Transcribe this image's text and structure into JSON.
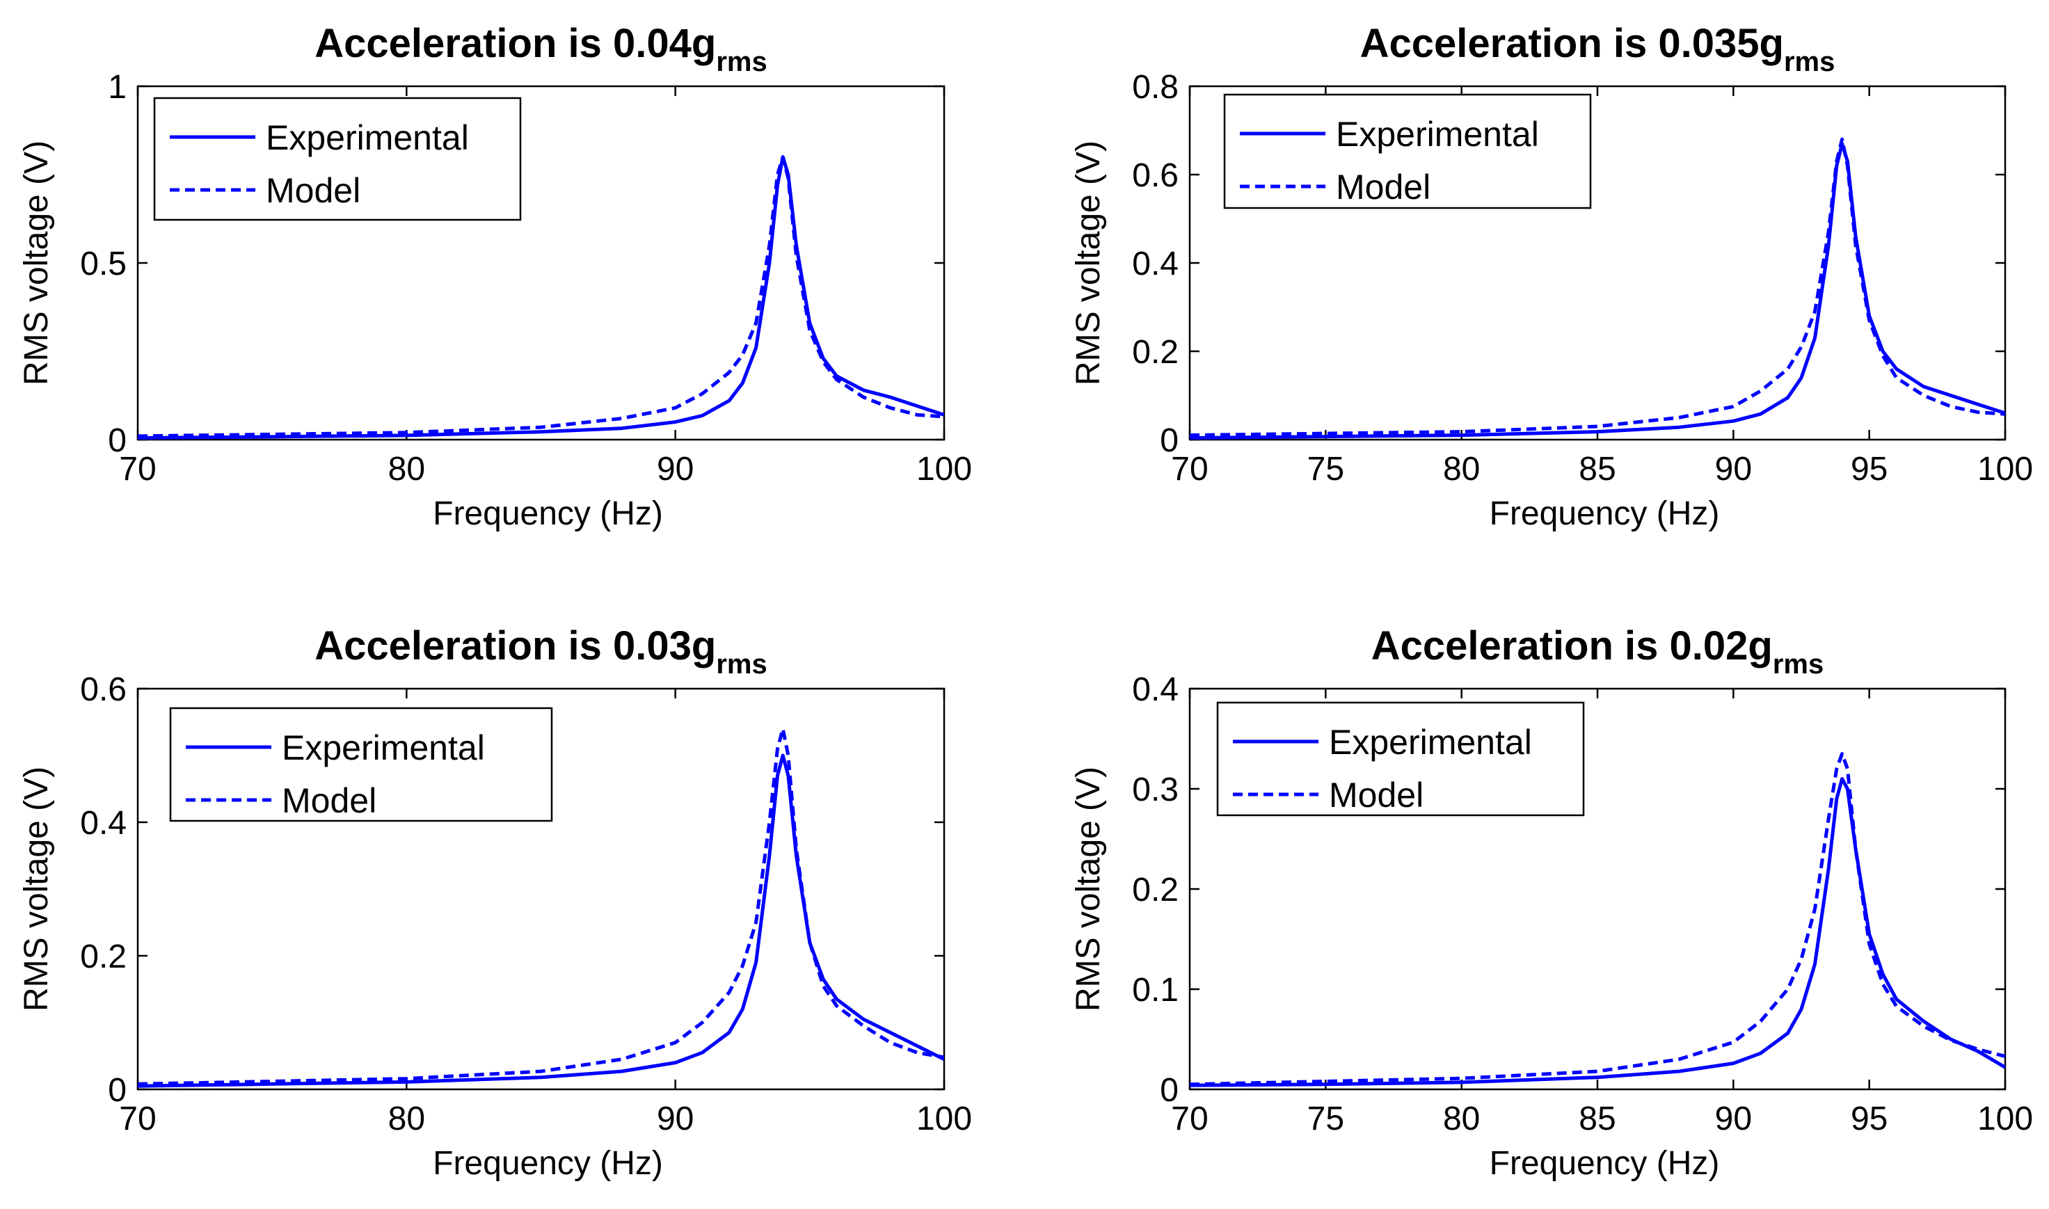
{
  "chart_data": [
    {
      "type": "line",
      "title": {
        "main": "Acceleration is 0.04g",
        "subscript": "rms"
      },
      "xlabel": "Frequency (Hz)",
      "ylabel": "RMS voltage (V)",
      "xlim": [
        70,
        100
      ],
      "ylim": [
        0,
        1
      ],
      "xticks": [
        70,
        80,
        90,
        100
      ],
      "yticks": [
        0,
        0.5,
        1
      ],
      "ytick_labels": [
        "0",
        "0.5",
        "1"
      ],
      "grid": false,
      "legend_position": "top-left",
      "series": [
        {
          "name": "Experimental",
          "style": "solid",
          "color": "#0000FF",
          "x": [
            70,
            75,
            80,
            85,
            88,
            90,
            91,
            92,
            92.5,
            93,
            93.5,
            93.8,
            94,
            94.2,
            94.5,
            95,
            95.5,
            96,
            97,
            98,
            99,
            100
          ],
          "y": [
            0.005,
            0.008,
            0.012,
            0.022,
            0.032,
            0.05,
            0.068,
            0.11,
            0.16,
            0.26,
            0.5,
            0.72,
            0.8,
            0.75,
            0.55,
            0.33,
            0.23,
            0.18,
            0.14,
            0.12,
            0.095,
            0.07
          ]
        },
        {
          "name": "Model",
          "style": "dashed",
          "color": "#0000FF",
          "x": [
            70,
            75,
            80,
            85,
            88,
            90,
            91,
            92,
            92.5,
            93,
            93.5,
            93.8,
            94,
            94.2,
            94.5,
            95,
            95.5,
            96,
            97,
            98,
            99,
            100
          ],
          "y": [
            0.01,
            0.015,
            0.02,
            0.035,
            0.06,
            0.09,
            0.13,
            0.19,
            0.24,
            0.33,
            0.55,
            0.75,
            0.8,
            0.74,
            0.52,
            0.31,
            0.22,
            0.17,
            0.12,
            0.09,
            0.07,
            0.065
          ]
        }
      ]
    },
    {
      "type": "line",
      "title": {
        "main": "Acceleration is 0.035g",
        "subscript": "rms"
      },
      "xlabel": "Frequency (Hz)",
      "ylabel": "RMS voltage (V)",
      "xlim": [
        70,
        100
      ],
      "ylim": [
        0,
        0.8
      ],
      "xticks": [
        70,
        75,
        80,
        85,
        90,
        95,
        100
      ],
      "yticks": [
        0,
        0.2,
        0.4,
        0.6,
        0.8
      ],
      "ytick_labels": [
        "0",
        "0.2",
        "0.4",
        "0.6",
        "0.8"
      ],
      "grid": false,
      "legend_position": "top-left",
      "series": [
        {
          "name": "Experimental",
          "style": "solid",
          "color": "#0000FF",
          "x": [
            70,
            75,
            80,
            85,
            88,
            90,
            91,
            92,
            92.5,
            93,
            93.5,
            93.8,
            94,
            94.2,
            94.5,
            95,
            95.5,
            96,
            97,
            98,
            99,
            100
          ],
          "y": [
            0.004,
            0.007,
            0.01,
            0.018,
            0.028,
            0.042,
            0.058,
            0.095,
            0.14,
            0.23,
            0.44,
            0.62,
            0.67,
            0.63,
            0.46,
            0.28,
            0.2,
            0.16,
            0.12,
            0.1,
            0.08,
            0.06
          ]
        },
        {
          "name": "Model",
          "style": "dashed",
          "color": "#0000FF",
          "x": [
            70,
            75,
            80,
            85,
            88,
            90,
            91,
            92,
            92.5,
            93,
            93.5,
            93.8,
            94,
            94.2,
            94.5,
            95,
            95.5,
            96,
            97,
            98,
            99,
            100
          ],
          "y": [
            0.01,
            0.014,
            0.018,
            0.03,
            0.05,
            0.075,
            0.11,
            0.16,
            0.21,
            0.29,
            0.47,
            0.63,
            0.68,
            0.62,
            0.44,
            0.27,
            0.19,
            0.14,
            0.1,
            0.075,
            0.062,
            0.058
          ]
        }
      ]
    },
    {
      "type": "line",
      "title": {
        "main": "Acceleration is 0.03g",
        "subscript": "rms"
      },
      "xlabel": "Frequency (Hz)",
      "ylabel": "RMS voltage (V)",
      "xlim": [
        70,
        100
      ],
      "ylim": [
        0,
        0.6
      ],
      "xticks": [
        70,
        80,
        90,
        100
      ],
      "yticks": [
        0,
        0.2,
        0.4,
        0.6
      ],
      "ytick_labels": [
        "0",
        "0.2",
        "0.4",
        "0.6"
      ],
      "grid": false,
      "legend_position": "top-left",
      "series": [
        {
          "name": "Experimental",
          "style": "solid",
          "color": "#0000FF",
          "x": [
            70,
            75,
            80,
            85,
            88,
            90,
            91,
            92,
            92.5,
            93,
            93.5,
            93.8,
            94,
            94.2,
            94.5,
            95,
            95.5,
            96,
            97,
            98,
            99,
            100
          ],
          "y": [
            0.005,
            0.008,
            0.011,
            0.018,
            0.027,
            0.04,
            0.055,
            0.085,
            0.12,
            0.19,
            0.35,
            0.47,
            0.5,
            0.47,
            0.35,
            0.22,
            0.165,
            0.135,
            0.105,
            0.085,
            0.065,
            0.045
          ]
        },
        {
          "name": "Model",
          "style": "dashed",
          "color": "#0000FF",
          "x": [
            70,
            75,
            80,
            85,
            88,
            90,
            91,
            92,
            92.5,
            93,
            93.5,
            93.8,
            94,
            94.2,
            94.5,
            95,
            95.5,
            96,
            97,
            98,
            99,
            100
          ],
          "y": [
            0.008,
            0.012,
            0.016,
            0.027,
            0.045,
            0.07,
            0.1,
            0.145,
            0.185,
            0.25,
            0.4,
            0.51,
            0.54,
            0.5,
            0.36,
            0.22,
            0.155,
            0.125,
            0.095,
            0.07,
            0.055,
            0.048
          ]
        }
      ]
    },
    {
      "type": "line",
      "title": {
        "main": "Acceleration is 0.02g",
        "subscript": "rms"
      },
      "xlabel": "Frequency (Hz)",
      "ylabel": "RMS voltage (V)",
      "xlim": [
        70,
        100
      ],
      "ylim": [
        0,
        0.4
      ],
      "xticks": [
        70,
        75,
        80,
        85,
        90,
        95,
        100
      ],
      "yticks": [
        0,
        0.1,
        0.2,
        0.3,
        0.4
      ],
      "ytick_labels": [
        "0",
        "0.1",
        "0.2",
        "0.3",
        "0.4"
      ],
      "grid": false,
      "legend_position": "top-left",
      "series": [
        {
          "name": "Experimental",
          "style": "solid",
          "color": "#0000FF",
          "x": [
            70,
            75,
            80,
            85,
            88,
            90,
            91,
            92,
            92.5,
            93,
            93.5,
            93.8,
            94,
            94.2,
            94.5,
            95,
            95.5,
            96,
            97,
            98,
            99,
            100
          ],
          "y": [
            0.004,
            0.005,
            0.007,
            0.012,
            0.018,
            0.026,
            0.036,
            0.056,
            0.08,
            0.125,
            0.22,
            0.29,
            0.31,
            0.3,
            0.24,
            0.155,
            0.115,
            0.09,
            0.068,
            0.05,
            0.038,
            0.022
          ]
        },
        {
          "name": "Model",
          "style": "dashed",
          "color": "#0000FF",
          "x": [
            70,
            75,
            80,
            85,
            88,
            90,
            91,
            92,
            92.5,
            93,
            93.5,
            93.8,
            94,
            94.2,
            94.5,
            95,
            95.5,
            96,
            97,
            98,
            99,
            100
          ],
          "y": [
            0.005,
            0.008,
            0.011,
            0.018,
            0.03,
            0.047,
            0.068,
            0.1,
            0.13,
            0.18,
            0.27,
            0.32,
            0.335,
            0.32,
            0.24,
            0.145,
            0.105,
            0.083,
            0.063,
            0.049,
            0.04,
            0.033
          ]
        }
      ]
    }
  ]
}
